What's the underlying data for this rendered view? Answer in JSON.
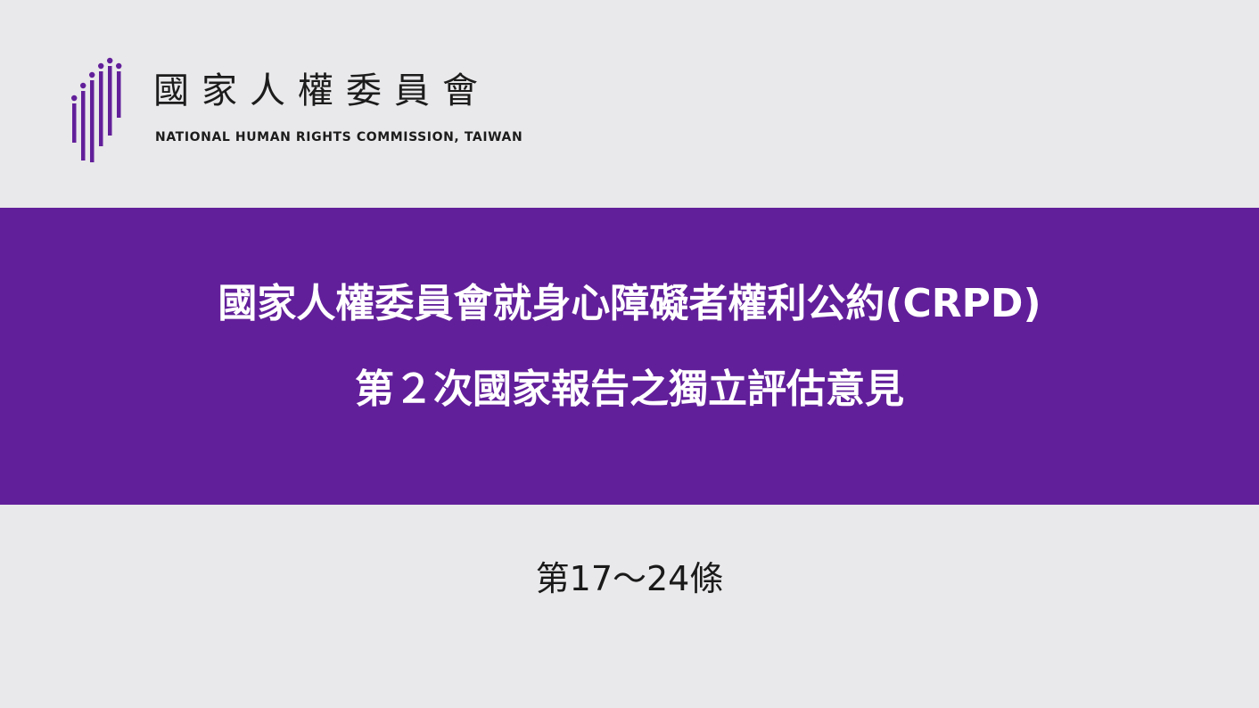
{
  "logo": {
    "title": "國家人權委員會",
    "subtitle": "NATIONAL HUMAN RIGHTS COMMISSION, TAIWAN",
    "mark_icon": "vertical-bars-logo-icon",
    "accent_color": "#621f9a"
  },
  "banner": {
    "line1": "國家人權委員會就身心障礙者權利公約(CRPD)",
    "line2": "第２次國家報告之獨立評估意見",
    "background_color": "#621f9a"
  },
  "article_range": "第17～24條"
}
